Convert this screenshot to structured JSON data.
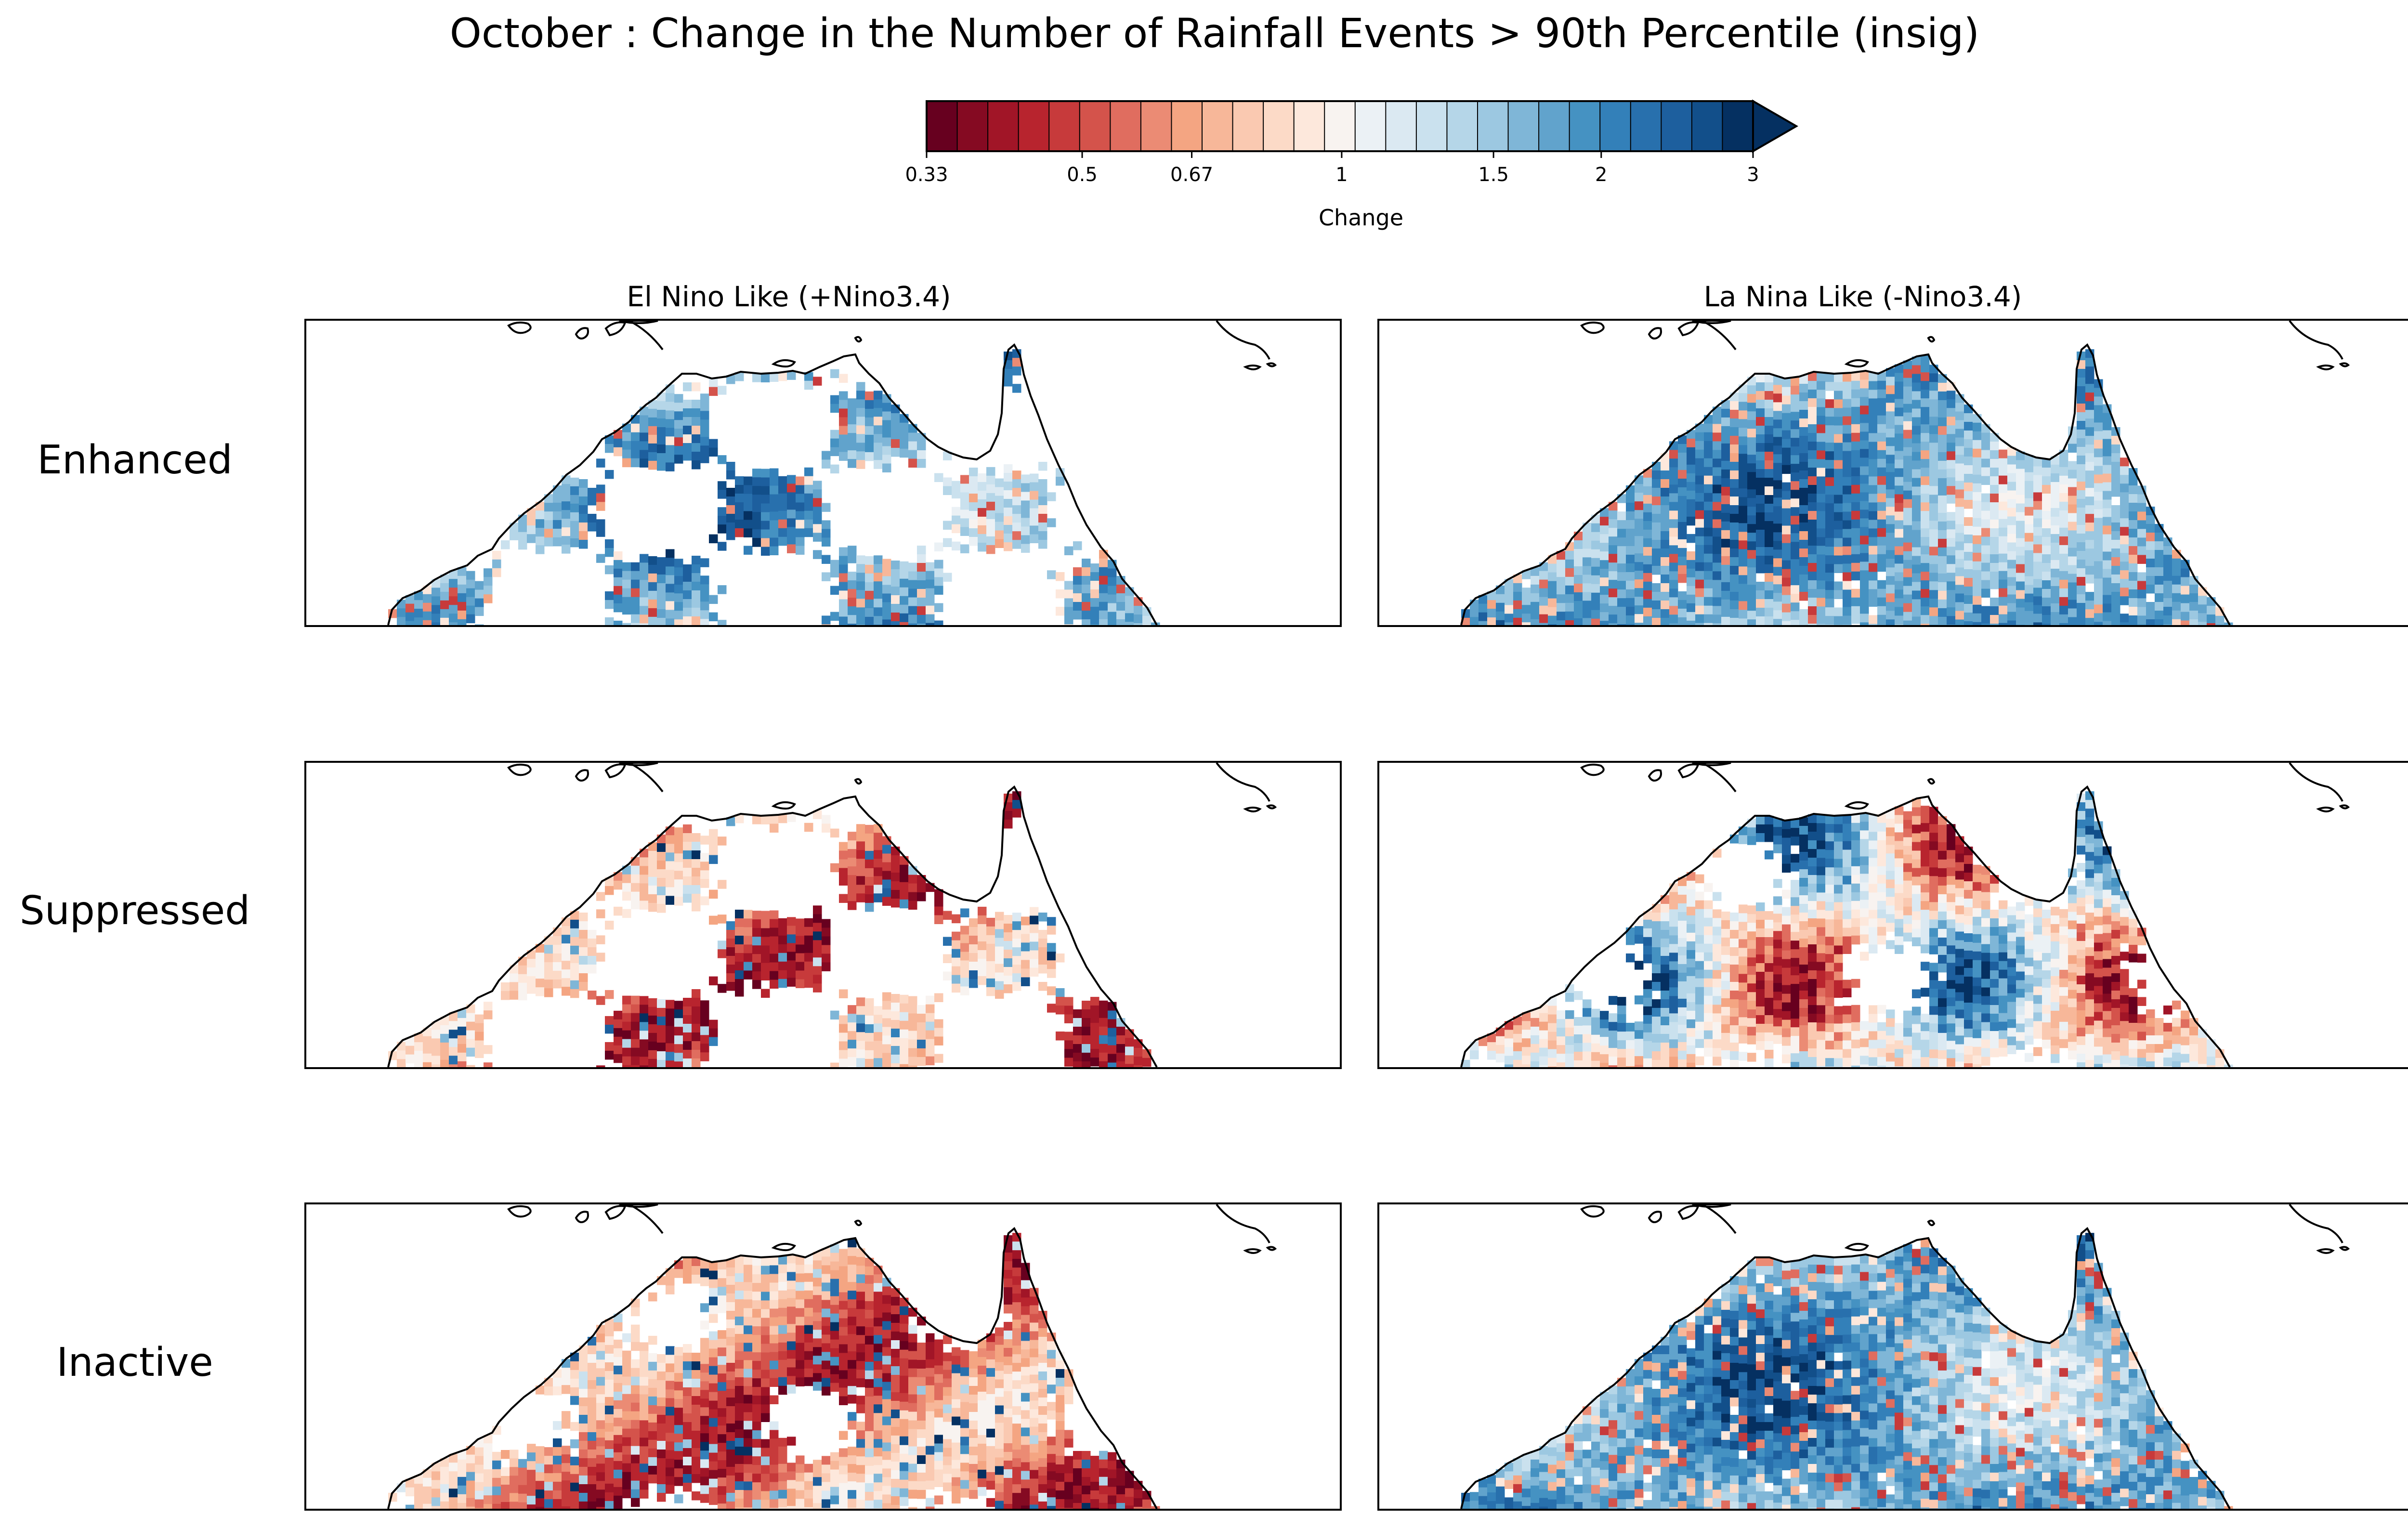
{
  "title": "October : Change in the Number of Rainfall Events > 90th Percentile (insig)",
  "chart_data": {
    "type": "heatmap",
    "colorbar": {
      "label": "Change",
      "tick_labels": [
        "0.33",
        "0.5",
        "0.67",
        "1",
        "1.5",
        "2",
        "3"
      ],
      "tick_values": [
        0.33,
        0.5,
        0.67,
        1,
        1.5,
        2,
        3
      ],
      "scale": "log",
      "extend": "max",
      "colors": [
        "#67001f",
        "#850a22",
        "#a11527",
        "#b8242e",
        "#c73a3b",
        "#d4534b",
        "#e06d5f",
        "#eb8b74",
        "#f4a582",
        "#f7b799",
        "#fac9b1",
        "#fcdac7",
        "#fde8dc",
        "#f8f3f0",
        "#ebf1f5",
        "#dbe9f2",
        "#cae1ee",
        "#b5d6e8",
        "#9cc8e1",
        "#7fb6d7",
        "#61a3cc",
        "#4592c2",
        "#3380b9",
        "#2870ad",
        "#1d5f9e",
        "#124f8a",
        "#053061"
      ]
    },
    "columns": [
      "El Nino Like (+Nino3.4)",
      "La Nina Like (-Nino3.4)"
    ],
    "rows": [
      "Enhanced",
      "Suppressed",
      "Inactive"
    ],
    "panels": [
      {
        "row": "Enhanced",
        "column": "El Nino Like (+Nino3.4)",
        "dominant": "increase",
        "coverage": "sparse"
      },
      {
        "row": "Enhanced",
        "column": "La Nina Like (-Nino3.4)",
        "dominant": "increase",
        "coverage": "full"
      },
      {
        "row": "Suppressed",
        "column": "El Nino Like (+Nino3.4)",
        "dominant": "decrease",
        "coverage": "sparse"
      },
      {
        "row": "Suppressed",
        "column": "La Nina Like (-Nino3.4)",
        "dominant": "mixed",
        "coverage": "most"
      },
      {
        "row": "Inactive",
        "column": "El Nino Like (+Nino3.4)",
        "dominant": "decrease",
        "coverage": "most"
      },
      {
        "row": "Inactive",
        "column": "La Nina Like (-Nino3.4)",
        "dominant": "increase",
        "coverage": "full"
      }
    ]
  }
}
